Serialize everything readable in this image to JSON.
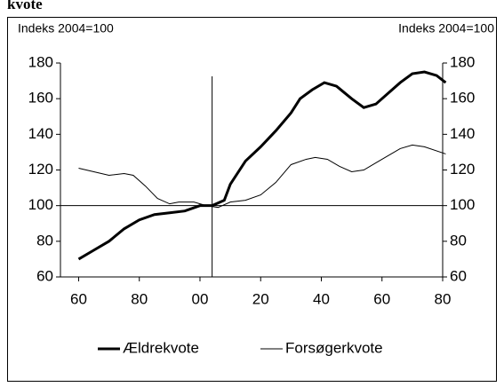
{
  "chart_data": {
    "type": "line",
    "title": "kvote",
    "ylabel": "Indeks 2004=100",
    "y2label": "Indeks 2004=100",
    "xlim": [
      1954,
      2080
    ],
    "xticks": [
      {
        "value": 1960,
        "label": "60"
      },
      {
        "value": 1980,
        "label": "80"
      },
      {
        "value": 2000,
        "label": "00"
      },
      {
        "value": 2020,
        "label": "20"
      },
      {
        "value": 2040,
        "label": "40"
      },
      {
        "value": 2060,
        "label": "60"
      },
      {
        "value": 2080,
        "label": "80"
      }
    ],
    "ylim": [
      60,
      180
    ],
    "yticks": [
      60,
      80,
      100,
      120,
      140,
      160,
      180
    ],
    "y2lim": [
      60,
      180
    ],
    "y2ticks": [
      60,
      80,
      100,
      120,
      140,
      160,
      180
    ],
    "vline": 2004,
    "hline": 100,
    "series": [
      {
        "name": "Ældrekvote",
        "color": "#000000",
        "width": 3,
        "x": [
          1960,
          1965,
          1970,
          1975,
          1980,
          1985,
          1990,
          1995,
          2000,
          2004,
          2008,
          2010,
          2015,
          2020,
          2025,
          2030,
          2033,
          2037,
          2041,
          2045,
          2050,
          2054,
          2058,
          2062,
          2066,
          2070,
          2074,
          2078,
          2081
        ],
        "values": [
          70,
          75,
          80,
          87,
          92,
          95,
          96,
          97,
          100,
          100,
          103,
          112,
          125,
          133,
          142,
          152,
          160,
          165,
          169,
          167,
          160,
          155,
          157,
          163,
          169,
          174,
          175,
          173,
          169
        ]
      },
      {
        "name": "Forsøgerkvote",
        "color": "#000000",
        "width": 1,
        "x": [
          1960,
          1965,
          1970,
          1975,
          1978,
          1982,
          1986,
          1990,
          1993,
          1998,
          2002,
          2006,
          2010,
          2015,
          2020,
          2025,
          2030,
          2035,
          2038,
          2042,
          2046,
          2050,
          2054,
          2058,
          2062,
          2066,
          2070,
          2074,
          2081
        ],
        "values": [
          121,
          119,
          117,
          118,
          117,
          111,
          104,
          101,
          102,
          102,
          100,
          99,
          102,
          103,
          106,
          113,
          123,
          126,
          127,
          126,
          122,
          119,
          120,
          124,
          128,
          132,
          134,
          133,
          129
        ]
      }
    ]
  }
}
